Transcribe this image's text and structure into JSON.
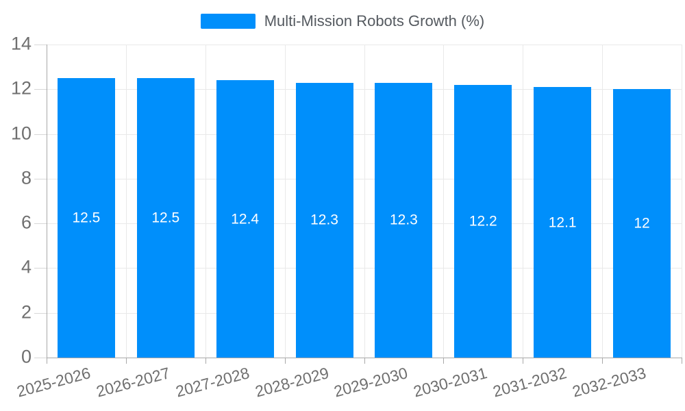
{
  "legend": {
    "label": "Multi-Mission Robots Growth (%)"
  },
  "colors": {
    "bar": "#008FFB",
    "bar_label_text": "#ffffff",
    "axis_label": "#6f6f6f",
    "legend_text": "#54595f",
    "gridline": "#e9e9e9",
    "axis_line": "#a8a8a8"
  },
  "chart_data": {
    "type": "bar",
    "title": "Multi-Mission Robots Growth (%)",
    "categories": [
      "2025-2026",
      "2026-2027",
      "2027-2028",
      "2028-2029",
      "2029-2030",
      "2030-2031",
      "2031-2032",
      "2032-2033"
    ],
    "series": [
      {
        "name": "Multi-Mission Robots Growth (%)",
        "values": [
          12.5,
          12.5,
          12.4,
          12.3,
          12.3,
          12.2,
          12.1,
          12
        ]
      }
    ],
    "value_labels": [
      "12.5",
      "12.5",
      "12.4",
      "12.3",
      "12.3",
      "12.2",
      "12.1",
      "12"
    ],
    "xlabel": "",
    "ylabel": "",
    "ylim": [
      0,
      14
    ],
    "ytick_step": 2,
    "ytick_labels": [
      "0",
      "2",
      "4",
      "6",
      "8",
      "10",
      "12",
      "14"
    ],
    "grid": true,
    "legend_position": "top",
    "x_label_rotation_deg": -15,
    "bar_width_fraction": 0.725,
    "data_label_position": "center"
  }
}
